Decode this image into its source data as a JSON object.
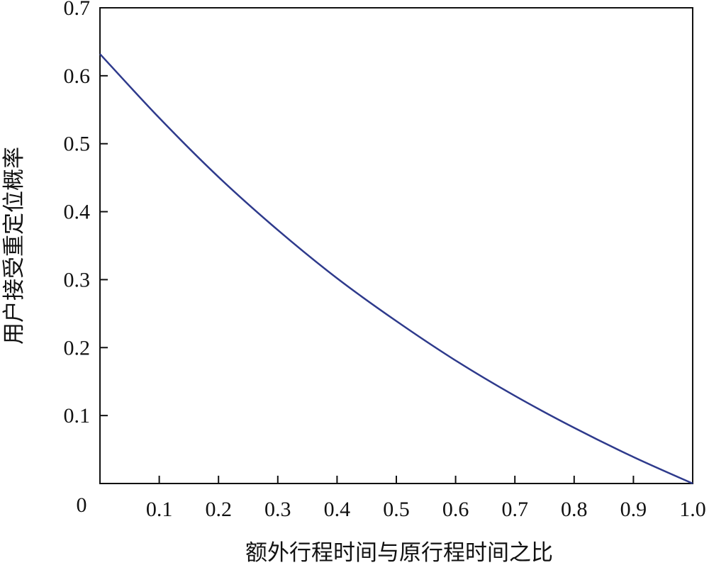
{
  "chart_data": {
    "type": "line",
    "title": "",
    "xlabel": "额外行程时间与原行程时间之比",
    "ylabel": "用户接受重定位概率",
    "xlim": [
      0,
      1.0
    ],
    "ylim": [
      0,
      0.7
    ],
    "x_ticks": [
      "0.1",
      "0.2",
      "0.3",
      "0.4",
      "0.5",
      "0.6",
      "0.7",
      "0.8",
      "0.9",
      "1.0"
    ],
    "y_ticks": [
      "0",
      "0.1",
      "0.2",
      "0.3",
      "0.4",
      "0.5",
      "0.6",
      "0.7"
    ],
    "grid": false,
    "line_color": "#2e3a8c",
    "series": [
      {
        "x": [
          0,
          0.1,
          0.2,
          0.3,
          0.4,
          0.5,
          0.6,
          0.7,
          0.8,
          0.9,
          1.0
        ],
        "y": [
          0.632,
          0.538,
          0.451,
          0.373,
          0.302,
          0.239,
          0.181,
          0.129,
          0.082,
          0.039,
          0
        ]
      }
    ]
  }
}
